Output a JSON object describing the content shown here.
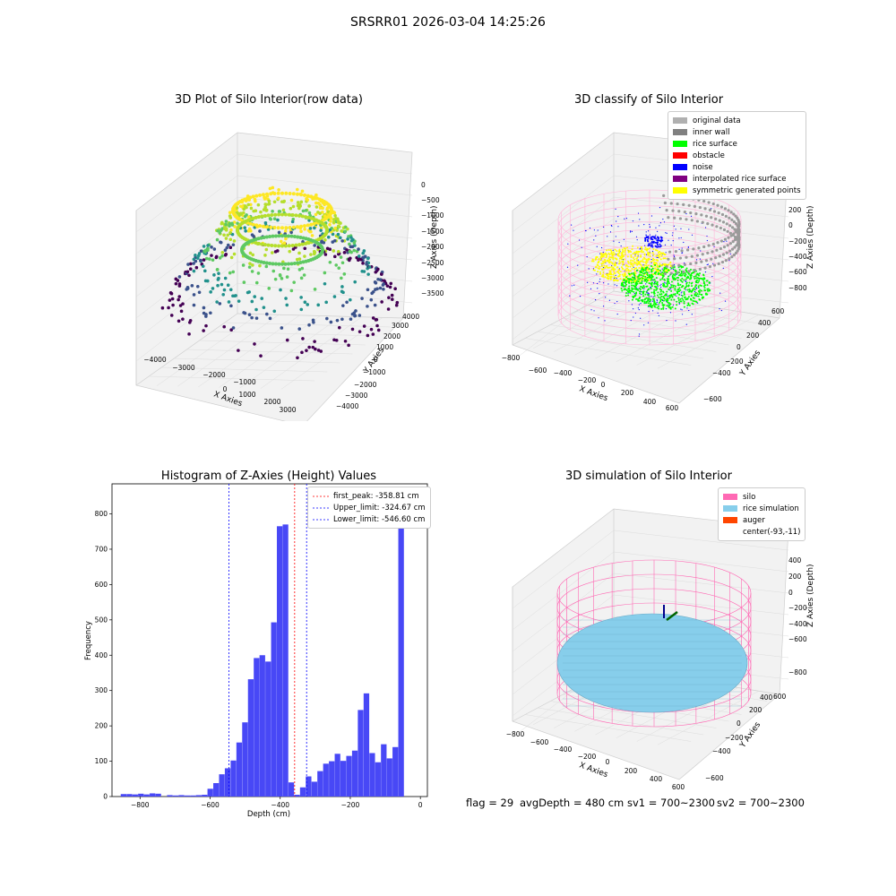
{
  "suptitle": "SRSRR01 2026-03-04 14:25:26",
  "chart_data": [
    {
      "type": "scatter",
      "variant": "3d",
      "title": "3D Plot of Silo Interior(row data)",
      "xlabel": "X Axies",
      "ylabel": "Y Axies",
      "zlabel": "Z Axies (Depth)",
      "x_ticks": [
        "−4000",
        "−3000",
        "−2000",
        "−1000",
        "0",
        "1000",
        "2000",
        "3000"
      ],
      "y_ticks": [
        "−4000",
        "−3000",
        "−2000",
        "−1000",
        "0",
        "1000",
        "2000",
        "3000",
        "4000"
      ],
      "z_ticks": [
        "0",
        "−500",
        "−1000",
        "−1500",
        "−2000",
        "−2500",
        "−3000",
        "−3500"
      ],
      "colormap": "viridis",
      "grid": true
    },
    {
      "type": "scatter",
      "variant": "3d",
      "title": "3D classify of Silo Interior",
      "xlabel": "X Axies",
      "ylabel": "Y Axies",
      "zlabel": "Z Axies (Depth)",
      "x_ticks": [
        "−800",
        "−600",
        "−400",
        "−200",
        "0",
        "200",
        "400",
        "600"
      ],
      "y_ticks": [
        "−600",
        "−400",
        "−200",
        "0",
        "200",
        "400",
        "600"
      ],
      "z_ticks": [
        "200",
        "0",
        "−200",
        "−400",
        "−600",
        "−800"
      ],
      "legend": [
        {
          "label": "original data",
          "color": "#b0b0b0"
        },
        {
          "label": "inner wall",
          "color": "#808080"
        },
        {
          "label": "rice surface",
          "color": "#00ff00"
        },
        {
          "label": "obstacle",
          "color": "#ff0000"
        },
        {
          "label": "noise",
          "color": "#0000ff"
        },
        {
          "label": "interpolated rice surface",
          "color": "#800080"
        },
        {
          "label": "symmetric generated points",
          "color": "#ffff00"
        }
      ],
      "legend_position": "top-right",
      "grid": true
    },
    {
      "type": "bar",
      "variant": "histogram",
      "title": "Histogram of Z-Axies (Height) Values",
      "xlabel": "Depth (cm)",
      "ylabel": "Frequency",
      "xlim": [
        -880,
        20
      ],
      "ylim": [
        0,
        885
      ],
      "x_ticks": [
        -800,
        -600,
        -400,
        -200,
        0
      ],
      "x_tick_labels": [
        "−800",
        "−600",
        "−400",
        "−200",
        "0"
      ],
      "y_ticks": [
        0,
        100,
        200,
        300,
        400,
        500,
        600,
        700,
        800
      ],
      "bin_width": 16.5,
      "bin_start": -855,
      "values": [
        7,
        7,
        6,
        8,
        6,
        9,
        8,
        0,
        4,
        3,
        4,
        3,
        3,
        4,
        5,
        22,
        38,
        63,
        80,
        102,
        153,
        210,
        332,
        392,
        400,
        382,
        493,
        765,
        770,
        40,
        5,
        26,
        57,
        42,
        72,
        93,
        100,
        121,
        101,
        115,
        130,
        245,
        292,
        123,
        97,
        148,
        108,
        140,
        825
      ],
      "bar_color": "#4848f6",
      "lines": [
        {
          "label": "first_peak: -358.81 cm",
          "x": -358.81,
          "color": "#ff0000"
        },
        {
          "label": "Upper_limit: -324.67 cm",
          "x": -324.67,
          "color": "#0000ff"
        },
        {
          "label": "Lower_limit: -546.60 cm",
          "x": -546.6,
          "color": "#0000ff"
        }
      ],
      "legend_position": "top-right",
      "grid": false
    },
    {
      "type": "scatter",
      "variant": "3d",
      "title": "3D simulation of Silo Interior",
      "xlabel": "X Axies",
      "ylabel": "Y Axies",
      "zlabel": "Z Axies (Depth)",
      "x_ticks": [
        "−800",
        "−600",
        "−400",
        "−200",
        "0",
        "200",
        "400",
        "600"
      ],
      "y_ticks": [
        "−600",
        "−400",
        "−200",
        "0",
        "200",
        "400",
        "600"
      ],
      "z_ticks": [
        "400",
        "200",
        "0",
        "−200",
        "−400",
        "−600",
        "−800"
      ],
      "legend": [
        {
          "label": "silo",
          "color": "#ff69b4"
        },
        {
          "label": "rice simulation",
          "color": "#87ceeb"
        },
        {
          "label": "auger",
          "color": "#ff4500"
        },
        {
          "label": "center(-93,-11)",
          "color": ""
        }
      ],
      "legend_position": "top-right",
      "grid": true
    }
  ],
  "footer": {
    "flag": "flag = 29",
    "avg_depth": "avgDepth = 480 cm",
    "sv1": "sv1 = 700~2300",
    "sv2": "sv2 = 700~2300"
  }
}
